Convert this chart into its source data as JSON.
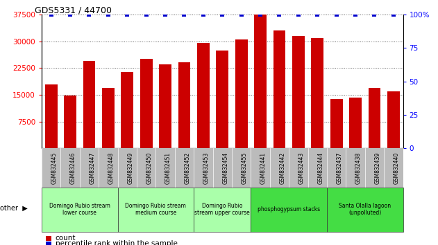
{
  "title": "GDS5331 / 44700",
  "samples": [
    "GSM832445",
    "GSM832446",
    "GSM832447",
    "GSM832448",
    "GSM832449",
    "GSM832450",
    "GSM832451",
    "GSM832452",
    "GSM832453",
    "GSM832454",
    "GSM832455",
    "GSM832441",
    "GSM832442",
    "GSM832443",
    "GSM832444",
    "GSM832437",
    "GSM832438",
    "GSM832439",
    "GSM832440"
  ],
  "counts": [
    18000,
    14800,
    24500,
    17000,
    21500,
    25200,
    23500,
    24200,
    29500,
    27500,
    30500,
    37500,
    33000,
    31500,
    31000,
    13800,
    14200,
    17000,
    16000
  ],
  "percentiles": [
    100,
    100,
    100,
    100,
    100,
    100,
    100,
    100,
    100,
    100,
    100,
    100,
    100,
    100,
    100,
    100,
    100,
    100,
    100
  ],
  "bar_color": "#cc0000",
  "dot_color": "#0000cc",
  "ylim": [
    0,
    37500
  ],
  "y2lim": [
    0,
    100
  ],
  "yticks": [
    7500,
    15000,
    22500,
    30000,
    37500
  ],
  "y2ticks": [
    0,
    25,
    50,
    75,
    100
  ],
  "y2ticklabels": [
    "0",
    "25",
    "50",
    "75",
    "100%"
  ],
  "groups": [
    {
      "label": "Domingo Rubio stream\nlower course",
      "start": 0,
      "end": 3,
      "color": "#aaffaa"
    },
    {
      "label": "Domingo Rubio stream\nmedium course",
      "start": 4,
      "end": 7,
      "color": "#aaffaa"
    },
    {
      "label": "Domingo Rubio\nstream upper course",
      "start": 8,
      "end": 10,
      "color": "#aaffaa"
    },
    {
      "label": "phosphogypsum stacks",
      "start": 11,
      "end": 14,
      "color": "#44dd44"
    },
    {
      "label": "Santa Olalla lagoon\n(unpolluted)",
      "start": 15,
      "end": 18,
      "color": "#44dd44"
    }
  ],
  "legend_count_label": "count",
  "legend_pct_label": "percentile rank within the sample",
  "grid_color": "#555555",
  "tick_label_bg": "#bbbbbb",
  "other_label": "other"
}
